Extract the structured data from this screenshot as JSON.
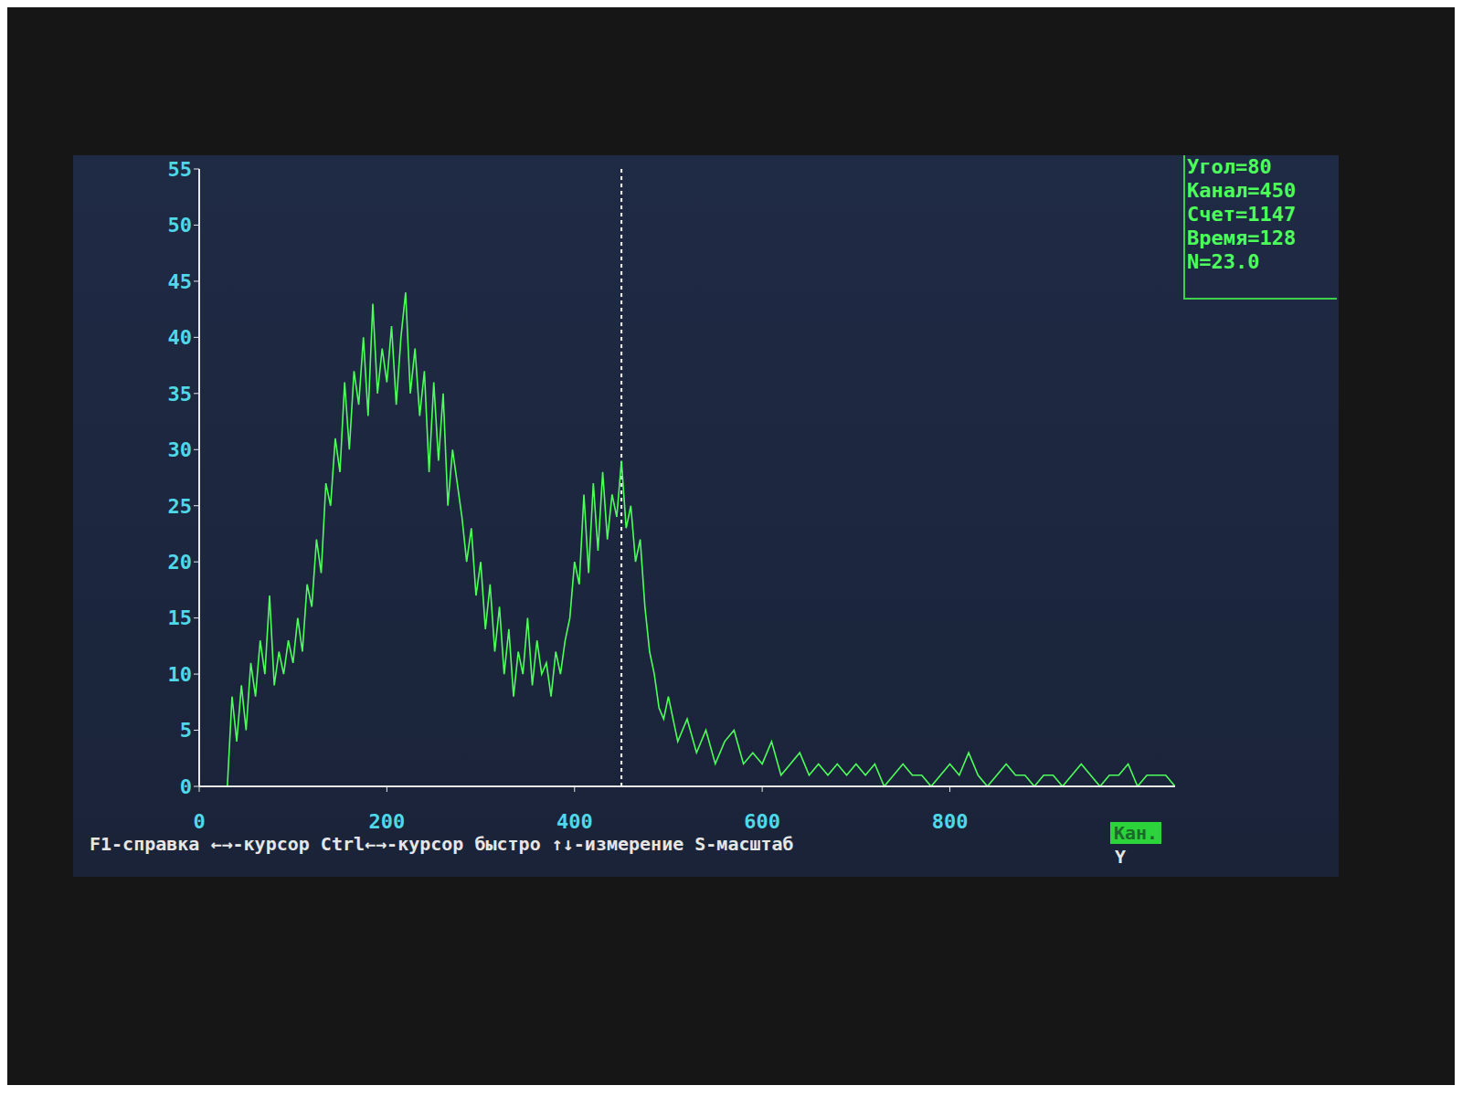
{
  "chart_data": {
    "type": "line",
    "color": "#4dff5a",
    "cursor": 450,
    "xlim": [
      0,
      1040
    ],
    "ylim": [
      0,
      55
    ],
    "xticks": [
      0,
      200,
      400,
      600,
      800
    ],
    "yticks": [
      0,
      5,
      10,
      15,
      20,
      25,
      30,
      35,
      40,
      45,
      50,
      55
    ],
    "annotations": [
      "Угол=80",
      "Канал=450",
      "Счет=1147",
      "Время=128",
      "N=23.0"
    ],
    "footer": "F1-справка ←→-курсор Ctrl←→-курсор быстро ↑↓-измерение S-масштаб",
    "mode_label": "Кан.",
    "axis_key": "Y",
    "x": [
      30,
      35,
      40,
      45,
      50,
      55,
      60,
      65,
      70,
      75,
      80,
      85,
      90,
      95,
      100,
      105,
      110,
      115,
      120,
      125,
      130,
      135,
      140,
      145,
      150,
      155,
      160,
      165,
      170,
      175,
      180,
      185,
      190,
      195,
      200,
      205,
      210,
      215,
      220,
      225,
      230,
      235,
      240,
      245,
      250,
      255,
      260,
      265,
      270,
      275,
      280,
      285,
      290,
      295,
      300,
      305,
      310,
      315,
      320,
      325,
      330,
      335,
      340,
      345,
      350,
      355,
      360,
      365,
      370,
      375,
      380,
      385,
      390,
      395,
      400,
      405,
      410,
      415,
      420,
      425,
      430,
      435,
      440,
      445,
      450,
      455,
      460,
      465,
      470,
      475,
      480,
      485,
      490,
      495,
      500,
      510,
      520,
      530,
      540,
      550,
      560,
      570,
      580,
      590,
      600,
      610,
      620,
      630,
      640,
      650,
      660,
      670,
      680,
      690,
      700,
      710,
      720,
      730,
      740,
      750,
      760,
      770,
      780,
      790,
      800,
      810,
      820,
      830,
      840,
      850,
      860,
      870,
      880,
      890,
      900,
      910,
      920,
      930,
      940,
      950,
      960,
      970,
      980,
      990,
      1000,
      1010,
      1020,
      1030,
      1040
    ],
    "values": [
      0,
      8,
      4,
      9,
      5,
      11,
      8,
      13,
      10,
      17,
      9,
      12,
      10,
      13,
      11,
      15,
      12,
      18,
      16,
      22,
      19,
      27,
      25,
      31,
      28,
      36,
      30,
      37,
      34,
      40,
      33,
      43,
      35,
      39,
      36,
      41,
      34,
      40,
      44,
      35,
      39,
      33,
      37,
      28,
      36,
      29,
      35,
      25,
      30,
      27,
      24,
      20,
      23,
      17,
      20,
      14,
      18,
      12,
      16,
      10,
      14,
      8,
      12,
      10,
      15,
      9,
      13,
      10,
      11,
      8,
      12,
      10,
      13,
      15,
      20,
      18,
      26,
      19,
      27,
      21,
      28,
      22,
      26,
      24,
      29,
      23,
      25,
      20,
      22,
      16,
      12,
      10,
      7,
      6,
      8,
      4,
      6,
      3,
      5,
      2,
      4,
      5,
      2,
      3,
      2,
      4,
      1,
      2,
      3,
      1,
      2,
      1,
      2,
      1,
      2,
      1,
      2,
      0,
      1,
      2,
      1,
      1,
      0,
      1,
      2,
      1,
      3,
      1,
      0,
      1,
      2,
      1,
      1,
      0,
      1,
      1,
      0,
      1,
      2,
      1,
      0,
      1,
      1,
      2,
      0,
      1,
      1,
      1,
      0
    ]
  }
}
